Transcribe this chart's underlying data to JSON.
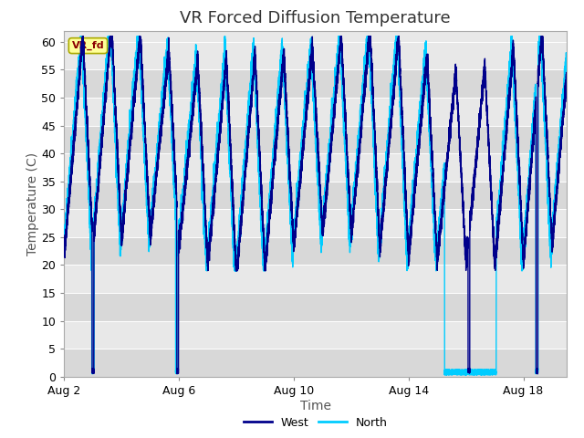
{
  "title": "VR Forced Diffusion Temperature",
  "xlabel": "Time",
  "ylabel": "Temperature (C)",
  "ylim": [
    0,
    62
  ],
  "yticks": [
    0,
    5,
    10,
    15,
    20,
    25,
    30,
    35,
    40,
    45,
    50,
    55,
    60
  ],
  "xlim_start": 0,
  "xlim_end": 17.5,
  "xtick_positions": [
    0,
    4,
    8,
    12,
    16
  ],
  "xtick_labels": [
    "Aug 2",
    "Aug 6",
    "Aug 10",
    "Aug 14",
    "Aug 18"
  ],
  "west_color": "#00008B",
  "north_color": "#00CCFF",
  "fig_bg_color": "#FFFFFF",
  "plot_bg_color": "#E8E8E8",
  "band_color_odd": "#E0E0E0",
  "band_color_even": "#EBEBEB",
  "annotation_text": "VR_fd",
  "annotation_bg": "#FFFF99",
  "annotation_border": "#AAAA00",
  "annotation_text_color": "#8B0000",
  "legend_west": "West",
  "legend_north": "North",
  "title_fontsize": 13,
  "axis_label_fontsize": 10,
  "tick_fontsize": 9
}
